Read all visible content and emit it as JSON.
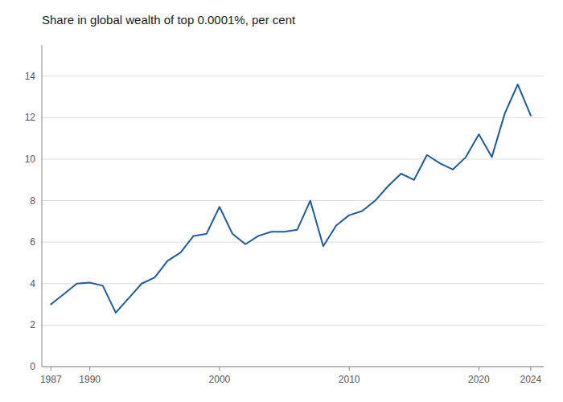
{
  "chart_data": {
    "type": "line",
    "title": "Share in global wealth of top 0.0001%, per cent",
    "x": [
      1987,
      1988,
      1989,
      1990,
      1991,
      1992,
      1993,
      1994,
      1995,
      1996,
      1997,
      1998,
      1999,
      2000,
      2001,
      2002,
      2003,
      2004,
      2005,
      2006,
      2007,
      2008,
      2009,
      2010,
      2011,
      2012,
      2013,
      2014,
      2015,
      2016,
      2017,
      2018,
      2019,
      2020,
      2021,
      2022,
      2023,
      2024
    ],
    "values": [
      3.0,
      3.5,
      4.0,
      4.05,
      3.9,
      2.6,
      3.3,
      4.0,
      4.3,
      5.1,
      5.5,
      6.3,
      6.4,
      7.7,
      6.4,
      5.9,
      6.3,
      6.5,
      6.5,
      6.6,
      8.0,
      5.8,
      6.8,
      7.3,
      7.5,
      8.0,
      8.7,
      9.3,
      9.0,
      10.2,
      9.8,
      9.5,
      10.1,
      11.2,
      10.1,
      12.2,
      13.6,
      12.1
    ],
    "color": "#1f5c9e",
    "xlim": [
      1986.3,
      2025.0
    ],
    "ylim": [
      0,
      15.5
    ],
    "xticks": [
      1987,
      1990,
      2000,
      2010,
      2020,
      2024
    ],
    "yticks": [
      0,
      2,
      4,
      6,
      8,
      10,
      12,
      14
    ],
    "grid": true
  }
}
